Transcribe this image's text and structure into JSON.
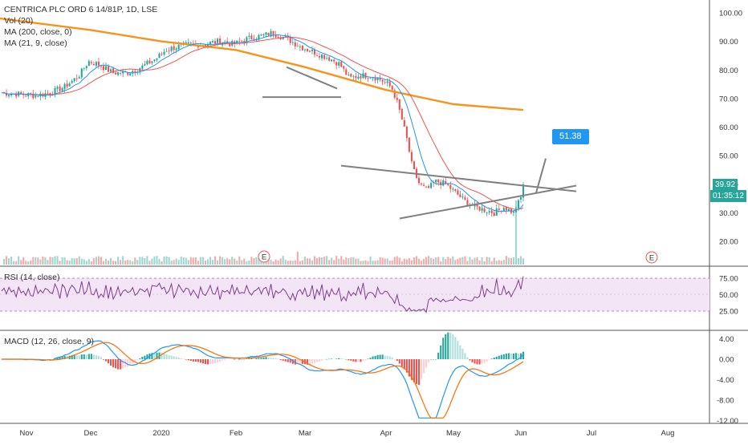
{
  "header": {
    "symbol_line": "CENTRICA PLC ORD 6 14/81P, 1D, LSE",
    "vol": "Vol (20)",
    "ma200": "MA (200, close, 0)",
    "ma21": "MA (21, 9, close)"
  },
  "colors": {
    "up": "#26a69a",
    "down": "#ef5350",
    "ma200": "#f7931a",
    "ma21": "#ef5350",
    "ma9": "#2196f3",
    "rsi": "#7e3f8f",
    "rsi_band": "#f3e5f5",
    "macd": "#2196f3",
    "signal": "#ff6d00",
    "trend": "#808080",
    "callout": "#2196f3"
  },
  "price_axis": {
    "ticks": [
      "100.00",
      "90.00",
      "80.00",
      "70.00",
      "60.00",
      "50.00",
      "40.00",
      "30.00",
      "20.00"
    ],
    "min": 15,
    "max": 104
  },
  "price_badges": {
    "last": "39.92",
    "countdown": "01:35:12",
    "callout": "51.38"
  },
  "events": [
    "E",
    "E",
    "E"
  ],
  "rsi": {
    "label": "RSI (14, close)",
    "ticks": [
      "75.00",
      "50.00",
      "25.00"
    ]
  },
  "macd": {
    "label": "MACD (12, 26, close, 9)",
    "ticks": [
      "4.00",
      "0.00",
      "-4.00",
      "-8.00",
      "-12.00"
    ]
  },
  "time_axis": [
    "Nov",
    "Dec",
    "2020",
    "Feb",
    "Mar",
    "Apr",
    "May",
    "Jun",
    "Jul",
    "Aug"
  ],
  "chart_data": {
    "type": "line",
    "title": "CENTRICA PLC ORD 6 14/81P, 1D, LSE",
    "x": [
      "Nov",
      "Dec",
      "2020",
      "Feb",
      "Mar",
      "Apr",
      "May",
      "Jun"
    ],
    "series": [
      {
        "name": "MA (200, close, 0)",
        "values": [
          98,
          94,
          90,
          87,
          81,
          73,
          68,
          66
        ]
      },
      {
        "name": "MA (21, 9, close)",
        "values": [
          72,
          78,
          89,
          86,
          74,
          35,
          36,
          39
        ]
      }
    ],
    "close_points": [
      72,
      76,
      90,
      87,
      78,
      40,
      31,
      37,
      36,
      39.92
    ],
    "last_price": 39.92,
    "target_price": 51.38,
    "ylim": [
      15,
      104
    ],
    "rsi_ylim": [
      0,
      100
    ],
    "macd_ylim": [
      -12,
      4
    ]
  }
}
